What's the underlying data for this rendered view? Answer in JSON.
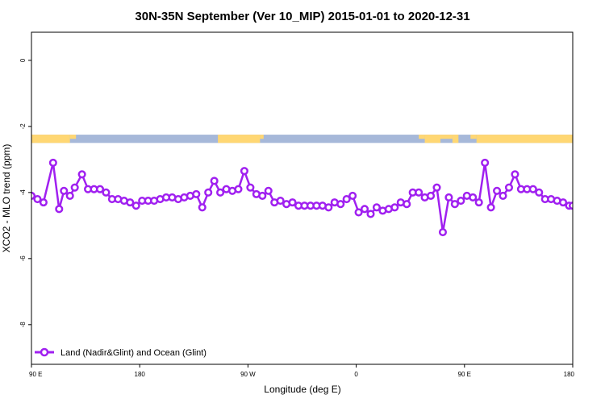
{
  "chart_data": {
    "type": "line",
    "title": "30N-35N September (Ver 10_MIP)   2015-01-01 to 2020-12-31",
    "xlabel": "Longitude (deg E)",
    "ylabel": "XCO2 - MLO trend (ppm)",
    "x_ticks": [
      {
        "value": 90,
        "label": "90 E"
      },
      {
        "value": 180,
        "label": "180"
      },
      {
        "value": 270,
        "label": "90 W"
      },
      {
        "value": 360,
        "label": "0"
      },
      {
        "value": 450,
        "label": "90 E"
      },
      {
        "value": 540,
        "label": "180"
      }
    ],
    "y_ticks": [
      0,
      -2,
      -4,
      -6,
      -8
    ],
    "xlim": [
      90,
      540
    ],
    "ylim": [
      -9.2,
      0.85
    ],
    "grid": false,
    "legend": {
      "placement": "bottom-left",
      "entries": [
        "Land (Nadir&Glint) and Ocean (Glint)"
      ]
    },
    "series_color": "#a020f0",
    "land_color": "#ffd773",
    "ocean_color": "#a6b8d9",
    "land_ocean_band": {
      "y_top": -2.25,
      "y_bottom": -2.5,
      "land": [
        [
          90,
          122
        ],
        [
          245,
          280
        ],
        [
          417,
          430
        ],
        [
          440,
          445
        ],
        [
          460,
          545
        ]
      ],
      "partial_land": [
        [
          122,
          127
        ],
        [
          280,
          283
        ],
        [
          412,
          417
        ],
        [
          430,
          440
        ],
        [
          455,
          460
        ],
        [
          542,
          547
        ]
      ]
    },
    "series": [
      {
        "name": "Land (Nadir&Glint) and Ocean (Glint)",
        "x": [
          90,
          95,
          100,
          108,
          113,
          117,
          122,
          126,
          132,
          137,
          142,
          147,
          152,
          157,
          162,
          167,
          172,
          177,
          182,
          187,
          192,
          197,
          202,
          207,
          212,
          217,
          222,
          227,
          232,
          237,
          242,
          247,
          252,
          257,
          262,
          267,
          272,
          277,
          282,
          287,
          292,
          297,
          302,
          307,
          312,
          317,
          322,
          327,
          332,
          337,
          342,
          347,
          352,
          357,
          362,
          367,
          372,
          377,
          382,
          387,
          392,
          397,
          402,
          407,
          412,
          417,
          422,
          427,
          432,
          437,
          442,
          447,
          452,
          457,
          462,
          467,
          472,
          477,
          482,
          487,
          492,
          497,
          502,
          507,
          512,
          517,
          522,
          527,
          532,
          537,
          540
        ],
        "y": [
          -4.1,
          -4.2,
          -4.3,
          -3.1,
          -4.5,
          -3.95,
          -4.1,
          -3.85,
          -3.45,
          -3.9,
          -3.9,
          -3.9,
          -4.0,
          -4.2,
          -4.2,
          -4.25,
          -4.3,
          -4.4,
          -4.25,
          -4.25,
          -4.25,
          -4.2,
          -4.15,
          -4.15,
          -4.2,
          -4.15,
          -4.1,
          -4.05,
          -4.45,
          -4.0,
          -3.65,
          -4.0,
          -3.9,
          -3.95,
          -3.9,
          -3.35,
          -3.85,
          -4.05,
          -4.1,
          -3.95,
          -4.3,
          -4.25,
          -4.35,
          -4.3,
          -4.4,
          -4.4,
          -4.4,
          -4.4,
          -4.4,
          -4.45,
          -4.3,
          -4.35,
          -4.2,
          -4.1,
          -4.6,
          -4.5,
          -4.65,
          -4.45,
          -4.55,
          -4.5,
          -4.45,
          -4.3,
          -4.35,
          -4.0,
          -4.0,
          -4.15,
          -4.1,
          -3.85,
          -5.2,
          -4.15,
          -4.35,
          -4.25,
          -4.1,
          -4.15,
          -4.3,
          -3.1,
          -4.45,
          -3.95,
          -4.1,
          -3.85,
          -3.45,
          -3.9,
          -3.9,
          -3.9,
          -4.0,
          -4.2,
          -4.2,
          -4.25,
          -4.3,
          -4.4,
          -4.4
        ]
      }
    ]
  }
}
